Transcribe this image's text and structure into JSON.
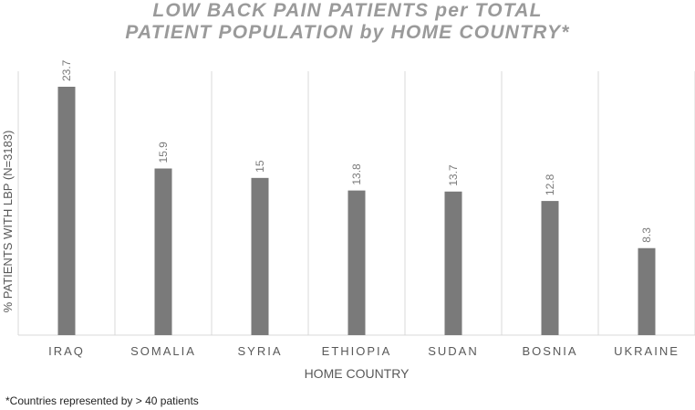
{
  "chart_data": {
    "type": "bar",
    "title_lines": [
      "LOW BACK PAIN PATIENTS per TOTAL",
      "PATIENT POPULATION by HOME COUNTRY*"
    ],
    "xlabel": "HOME COUNTRY",
    "ylabel": "% PATIENTS WITH LBP (N=3183)",
    "categories": [
      "IRAQ",
      "SOMALIA",
      "SYRIA",
      "ETHIOPIA",
      "SUDAN",
      "BOSNIA",
      "UKRAINE"
    ],
    "values": [
      23.7,
      15.9,
      15,
      13.8,
      13.7,
      12.8,
      8.3
    ],
    "data_labels": [
      "23.7",
      "15.9",
      "15",
      "13.8",
      "13.7",
      "12.8",
      "8.3"
    ],
    "ylim": [
      0,
      24
    ],
    "grid": "vertical",
    "legend": "none",
    "bar_color": "#7a7a7a",
    "footnote": "*Countries represented by > 40 patients"
  }
}
